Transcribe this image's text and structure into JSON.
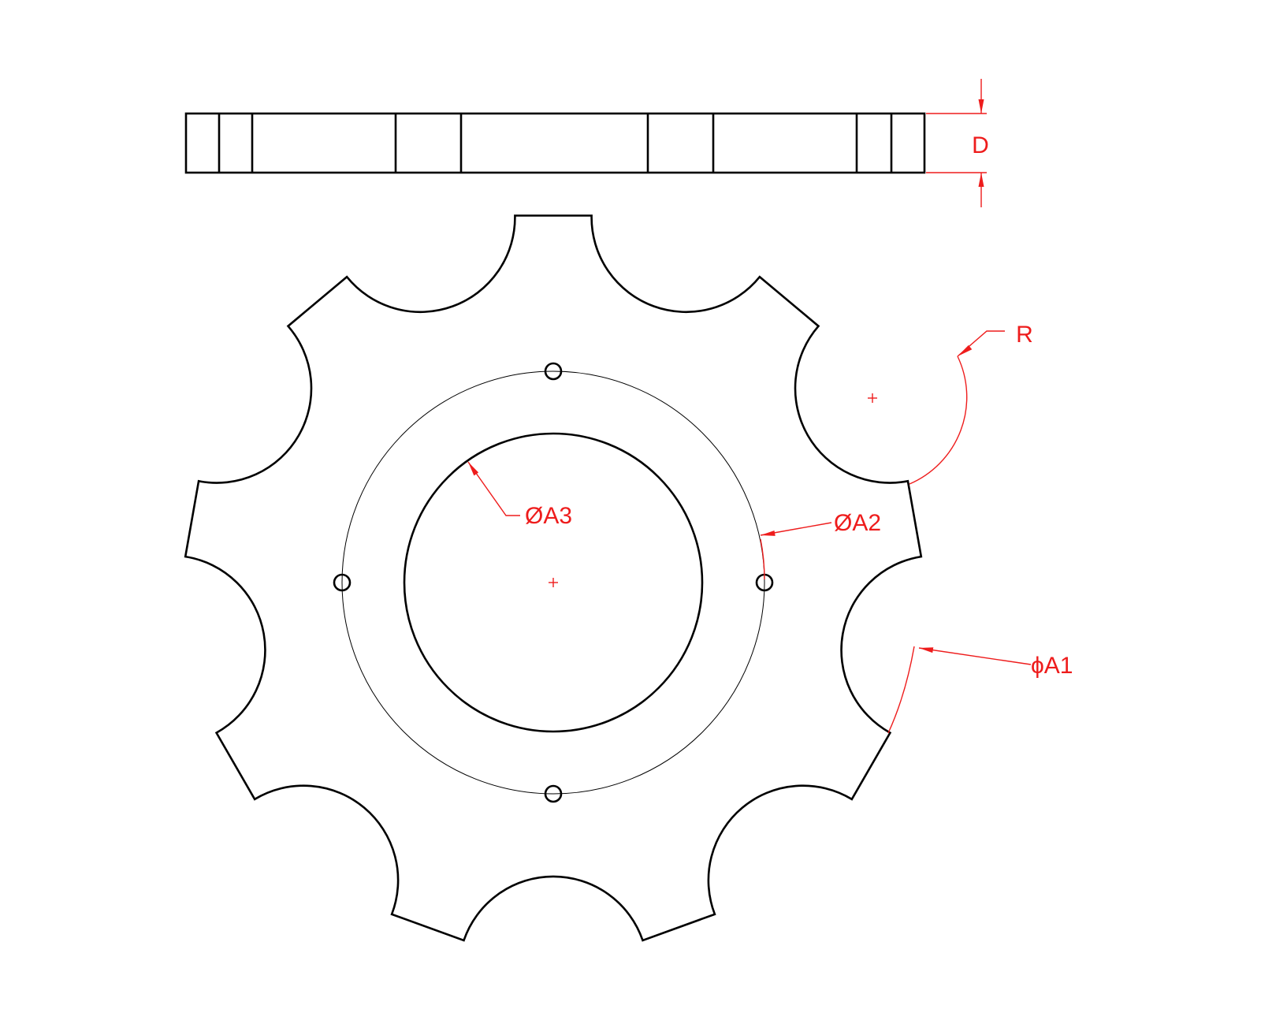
{
  "labels": {
    "thickness": "D",
    "radius": "R",
    "bolt_circle": "ØA2",
    "bore": "ØA3",
    "outer": "ϕA1"
  },
  "colors": {
    "outline": "#000000",
    "dimension": "#ee1c1c",
    "background": "#ffffff"
  }
}
